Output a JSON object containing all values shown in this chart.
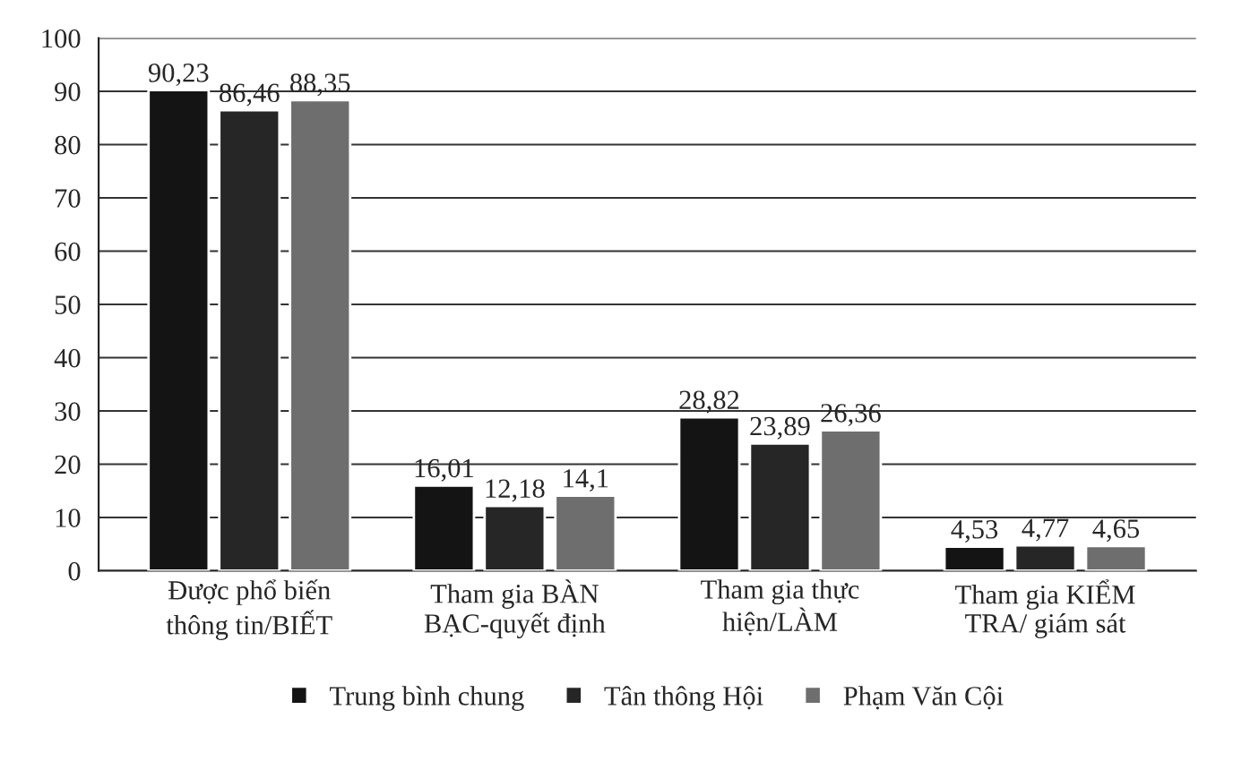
{
  "chart_data": {
    "type": "bar",
    "categories": [
      "Được phổ biến\nthông tin/BIẾT",
      "Tham gia BÀN\nBẠC-quyết định",
      "Tham gia thực\nhiện/LÀM",
      "Tham gia KIỂM\nTRA/ giám sát"
    ],
    "series": [
      {
        "name": "Trung bình chung",
        "color": "#141414",
        "values": [
          90.23,
          16.01,
          28.82,
          4.53
        ],
        "value_labels": [
          "90,23",
          "16,01",
          "28,82",
          "4,53"
        ]
      },
      {
        "name": "Tân thông Hội",
        "color": "#262626",
        "values": [
          86.46,
          12.18,
          23.89,
          4.77
        ],
        "value_labels": [
          "86,46",
          "12,18",
          "23,89",
          "4,77"
        ]
      },
      {
        "name": "Phạm Văn Cội",
        "color": "#6e6e6e",
        "values": [
          88.35,
          14.1,
          26.36,
          4.65
        ],
        "value_labels": [
          "88,35",
          "14,1",
          "26,36",
          "4,65"
        ]
      }
    ],
    "ylim": [
      0,
      100
    ],
    "yticks": [
      0,
      10,
      20,
      30,
      40,
      50,
      60,
      70,
      80,
      90,
      100
    ],
    "grid": "y",
    "legend": "bottom"
  }
}
